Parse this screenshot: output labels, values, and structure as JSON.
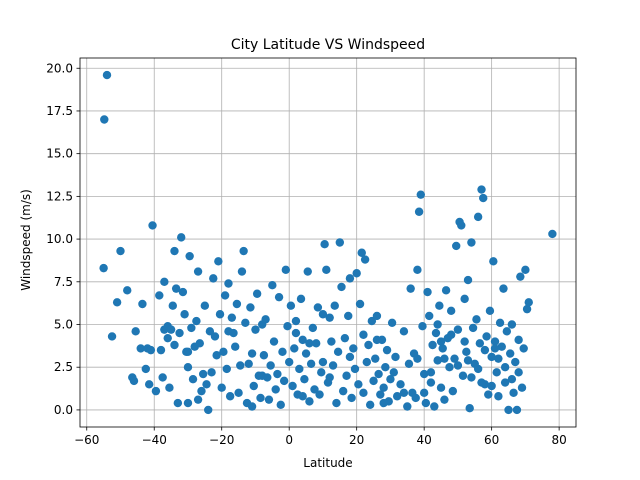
{
  "chart_data": {
    "type": "scatter",
    "title": "City Latitude VS Windspeed",
    "xlabel": "Latitude",
    "ylabel": "Windspeed (m/s)",
    "xlim": [
      -62,
      85
    ],
    "ylim": [
      -1.0,
      20.6
    ],
    "xticks": [
      -60,
      -40,
      -20,
      0,
      20,
      40,
      60,
      80
    ],
    "yticks": [
      0.0,
      2.5,
      5.0,
      7.5,
      10.0,
      12.5,
      15.0,
      17.5,
      20.0
    ],
    "xtick_labels": [
      "−60",
      "−40",
      "−20",
      "0",
      "20",
      "40",
      "60",
      "80"
    ],
    "ytick_labels": [
      "0.0",
      "2.5",
      "5.0",
      "7.5",
      "10.0",
      "12.5",
      "15.0",
      "17.5",
      "20.0"
    ],
    "grid": true,
    "series": [
      {
        "color": "#1f77b4",
        "points": [
          [
            -54.8,
            17.0
          ],
          [
            -54.0,
            19.6
          ],
          [
            -55.0,
            8.3
          ],
          [
            -50.0,
            9.3
          ],
          [
            -51.0,
            6.3
          ],
          [
            -52.5,
            4.3
          ],
          [
            -48.0,
            7.0
          ],
          [
            -46.5,
            1.9
          ],
          [
            -46.0,
            1.7
          ],
          [
            -45.5,
            4.6
          ],
          [
            -44.0,
            3.6
          ],
          [
            -43.5,
            6.2
          ],
          [
            -42.5,
            2.4
          ],
          [
            -42.0,
            3.6
          ],
          [
            -41.5,
            1.5
          ],
          [
            -41.0,
            3.5
          ],
          [
            -40.5,
            10.8
          ],
          [
            -39.5,
            1.1
          ],
          [
            -38.5,
            6.7
          ],
          [
            -38.0,
            3.5
          ],
          [
            -37.5,
            1.9
          ],
          [
            -37.0,
            7.5
          ],
          [
            -37.0,
            4.7
          ],
          [
            -36.0,
            4.9
          ],
          [
            -35.5,
            1.3
          ],
          [
            -35.0,
            4.7
          ],
          [
            -34.5,
            6.1
          ],
          [
            -34.0,
            9.3
          ],
          [
            -34.0,
            3.8
          ],
          [
            -33.5,
            7.1
          ],
          [
            -33.0,
            0.4
          ],
          [
            -32.5,
            4.5
          ],
          [
            -32.0,
            10.1
          ],
          [
            -31.5,
            6.9
          ],
          [
            -31.0,
            5.6
          ],
          [
            -30.5,
            3.4
          ],
          [
            -30.0,
            2.5
          ],
          [
            -30.0,
            0.4
          ],
          [
            -29.5,
            9.0
          ],
          [
            -29.0,
            4.8
          ],
          [
            -28.5,
            1.8
          ],
          [
            -28.0,
            3.7
          ],
          [
            -27.5,
            5.2
          ],
          [
            -27.0,
            8.1
          ],
          [
            -26.5,
            3.9
          ],
          [
            -26.0,
            1.1
          ],
          [
            -25.5,
            2.1
          ],
          [
            -25.0,
            6.1
          ],
          [
            -24.5,
            1.5
          ],
          [
            -24.0,
            0.0
          ],
          [
            -23.5,
            4.6
          ],
          [
            -23.0,
            2.2
          ],
          [
            -22.5,
            7.7
          ],
          [
            -22.0,
            4.3
          ],
          [
            -21.5,
            3.2
          ],
          [
            -21.0,
            8.7
          ],
          [
            -20.5,
            5.6
          ],
          [
            -20.0,
            1.3
          ],
          [
            -19.5,
            3.4
          ],
          [
            -19.0,
            6.7
          ],
          [
            -18.5,
            2.4
          ],
          [
            -18.0,
            7.4
          ],
          [
            -17.5,
            0.8
          ],
          [
            -17.0,
            5.4
          ],
          [
            -16.5,
            4.5
          ],
          [
            -16.0,
            3.7
          ],
          [
            -15.5,
            6.2
          ],
          [
            -15.0,
            1.0
          ],
          [
            -14.5,
            2.6
          ],
          [
            -14.0,
            8.1
          ],
          [
            -13.5,
            9.3
          ],
          [
            -13.0,
            5.1
          ],
          [
            -12.5,
            0.4
          ],
          [
            -12.0,
            2.7
          ],
          [
            -11.5,
            6.0
          ],
          [
            -11.0,
            3.3
          ],
          [
            -10.5,
            1.4
          ],
          [
            -10.0,
            4.7
          ],
          [
            -9.5,
            6.8
          ],
          [
            -9.0,
            2.0
          ],
          [
            -8.5,
            0.7
          ],
          [
            -8.0,
            5.0
          ],
          [
            -7.5,
            3.2
          ],
          [
            -7.0,
            5.3
          ],
          [
            -6.5,
            1.9
          ],
          [
            -6.0,
            0.6
          ],
          [
            -5.5,
            2.6
          ],
          [
            -5.0,
            7.3
          ],
          [
            -4.5,
            4.0
          ],
          [
            -4.0,
            1.2
          ],
          [
            -3.5,
            2.1
          ],
          [
            -3.0,
            6.6
          ],
          [
            -2.5,
            0.3
          ],
          [
            -2.0,
            3.4
          ],
          [
            -1.5,
            1.7
          ],
          [
            -1.0,
            8.2
          ],
          [
            -0.5,
            4.9
          ],
          [
            0.0,
            2.8
          ],
          [
            0.5,
            6.1
          ],
          [
            1.0,
            1.4
          ],
          [
            1.5,
            3.6
          ],
          [
            2.0,
            5.2
          ],
          [
            2.5,
            0.9
          ],
          [
            3.0,
            2.4
          ],
          [
            3.5,
            6.5
          ],
          [
            4.0,
            4.1
          ],
          [
            4.5,
            1.8
          ],
          [
            5.0,
            3.3
          ],
          [
            5.5,
            8.1
          ],
          [
            6.0,
            0.5
          ],
          [
            6.5,
            2.7
          ],
          [
            7.0,
            4.8
          ],
          [
            7.5,
            1.2
          ],
          [
            8.0,
            3.9
          ],
          [
            8.5,
            6.0
          ],
          [
            9.0,
            0.9
          ],
          [
            9.5,
            2.2
          ],
          [
            10.0,
            5.6
          ],
          [
            10.5,
            9.7
          ],
          [
            11.0,
            8.2
          ],
          [
            11.5,
            1.6
          ],
          [
            12.0,
            5.4
          ],
          [
            12.5,
            4.0
          ],
          [
            13.0,
            2.6
          ],
          [
            13.5,
            6.1
          ],
          [
            14.0,
            0.4
          ],
          [
            14.5,
            3.4
          ],
          [
            15.0,
            9.8
          ],
          [
            15.5,
            7.2
          ],
          [
            16.0,
            1.1
          ],
          [
            16.5,
            4.2
          ],
          [
            17.0,
            2.0
          ],
          [
            17.5,
            5.5
          ],
          [
            18.0,
            7.7
          ],
          [
            18.5,
            0.7
          ],
          [
            19.0,
            3.6
          ],
          [
            19.5,
            2.4
          ],
          [
            20.0,
            8.0
          ],
          [
            20.5,
            1.5
          ],
          [
            21.0,
            6.2
          ],
          [
            21.5,
            9.2
          ],
          [
            22.0,
            4.4
          ],
          [
            22.5,
            8.8
          ],
          [
            23.0,
            2.8
          ],
          [
            23.5,
            3.8
          ],
          [
            24.0,
            0.3
          ],
          [
            24.5,
            5.2
          ],
          [
            25.0,
            1.7
          ],
          [
            25.5,
            3.0
          ],
          [
            26.0,
            5.5
          ],
          [
            26.5,
            2.1
          ],
          [
            27.0,
            0.9
          ],
          [
            27.5,
            4.1
          ],
          [
            28.0,
            1.3
          ],
          [
            28.5,
            2.5
          ],
          [
            29.0,
            3.5
          ],
          [
            29.5,
            0.5
          ],
          [
            30.0,
            1.8
          ],
          [
            30.5,
            5.1
          ],
          [
            31.0,
            2.2
          ],
          [
            31.5,
            3.1
          ],
          [
            32.0,
            0.8
          ],
          [
            33.0,
            1.5
          ],
          [
            34.0,
            4.6
          ],
          [
            35.0,
            0.2
          ],
          [
            35.5,
            2.7
          ],
          [
            36.0,
            7.1
          ],
          [
            36.5,
            1.0
          ],
          [
            37.0,
            3.3
          ],
          [
            37.5,
            0.7
          ],
          [
            38.0,
            8.2
          ],
          [
            38.5,
            11.6
          ],
          [
            39.0,
            12.6
          ],
          [
            39.5,
            4.9
          ],
          [
            40.0,
            2.1
          ],
          [
            40.5,
            0.4
          ],
          [
            41.0,
            6.9
          ],
          [
            41.5,
            5.5
          ],
          [
            42.0,
            1.6
          ],
          [
            42.5,
            3.8
          ],
          [
            43.0,
            0.2
          ],
          [
            43.5,
            4.5
          ],
          [
            44.0,
            2.9
          ],
          [
            44.5,
            6.1
          ],
          [
            45.0,
            1.3
          ],
          [
            45.5,
            3.6
          ],
          [
            46.0,
            0.6
          ],
          [
            46.5,
            7.0
          ],
          [
            47.0,
            4.2
          ],
          [
            47.5,
            2.5
          ],
          [
            48.0,
            5.8
          ],
          [
            48.5,
            1.1
          ],
          [
            49.0,
            3.0
          ],
          [
            49.5,
            9.6
          ],
          [
            50.0,
            4.7
          ],
          [
            50.5,
            11.0
          ],
          [
            51.0,
            10.8
          ],
          [
            51.5,
            2.0
          ],
          [
            52.0,
            6.5
          ],
          [
            52.5,
            3.4
          ],
          [
            53.0,
            7.6
          ],
          [
            53.5,
            0.1
          ],
          [
            54.0,
            9.8
          ],
          [
            54.5,
            4.8
          ],
          [
            55.0,
            2.7
          ],
          [
            55.5,
            5.3
          ],
          [
            56.0,
            11.3
          ],
          [
            56.5,
            3.9
          ],
          [
            57.0,
            12.9
          ],
          [
            57.5,
            12.4
          ],
          [
            58.0,
            1.5
          ],
          [
            58.5,
            4.3
          ],
          [
            59.0,
            0.9
          ],
          [
            59.5,
            5.8
          ],
          [
            60.0,
            3.1
          ],
          [
            60.5,
            8.7
          ],
          [
            61.0,
            4.0
          ],
          [
            61.5,
            2.2
          ],
          [
            62.0,
            0.8
          ],
          [
            62.5,
            5.1
          ],
          [
            63.0,
            3.7
          ],
          [
            63.5,
            7.1
          ],
          [
            64.0,
            1.6
          ],
          [
            64.5,
            4.6
          ],
          [
            65.0,
            0.0
          ],
          [
            65.5,
            3.3
          ],
          [
            66.0,
            5.0
          ],
          [
            66.5,
            1.0
          ],
          [
            67.0,
            2.8
          ],
          [
            67.5,
            0.0
          ],
          [
            68.0,
            4.1
          ],
          [
            68.5,
            7.8
          ],
          [
            69.0,
            1.3
          ],
          [
            69.5,
            3.6
          ],
          [
            70.0,
            8.2
          ],
          [
            70.5,
            5.9
          ],
          [
            71.0,
            6.3
          ],
          [
            78.0,
            10.3
          ],
          [
            -36.0,
            4.2
          ],
          [
            -30.0,
            3.4
          ],
          [
            -18.0,
            4.6
          ],
          [
            -8.0,
            2.0
          ],
          [
            2.0,
            4.5
          ],
          [
            6.0,
            3.9
          ],
          [
            12.0,
            1.9
          ],
          [
            22.0,
            1.0
          ],
          [
            26.0,
            4.1
          ],
          [
            34.0,
            1.0
          ],
          [
            42.0,
            2.2
          ],
          [
            44.0,
            5.0
          ],
          [
            46.0,
            3.0
          ],
          [
            48.0,
            4.4
          ],
          [
            50.0,
            2.6
          ],
          [
            52.0,
            4.0
          ],
          [
            54.0,
            1.9
          ],
          [
            56.0,
            2.4
          ],
          [
            58.0,
            3.5
          ],
          [
            60.0,
            1.4
          ],
          [
            62.0,
            3.0
          ],
          [
            64.0,
            2.5
          ],
          [
            66.0,
            1.8
          ],
          [
            68.0,
            2.2
          ],
          [
            -27.0,
            0.6
          ],
          [
            -11.0,
            0.2
          ],
          [
            4.0,
            0.8
          ],
          [
            10.0,
            2.8
          ],
          [
            18.0,
            3.1
          ],
          [
            28.0,
            0.4
          ],
          [
            38.0,
            3.0
          ],
          [
            40.0,
            1.0
          ],
          [
            45.0,
            4.0
          ],
          [
            53.0,
            2.9
          ],
          [
            57.0,
            1.6
          ],
          [
            61.0,
            3.6
          ]
        ]
      }
    ]
  }
}
